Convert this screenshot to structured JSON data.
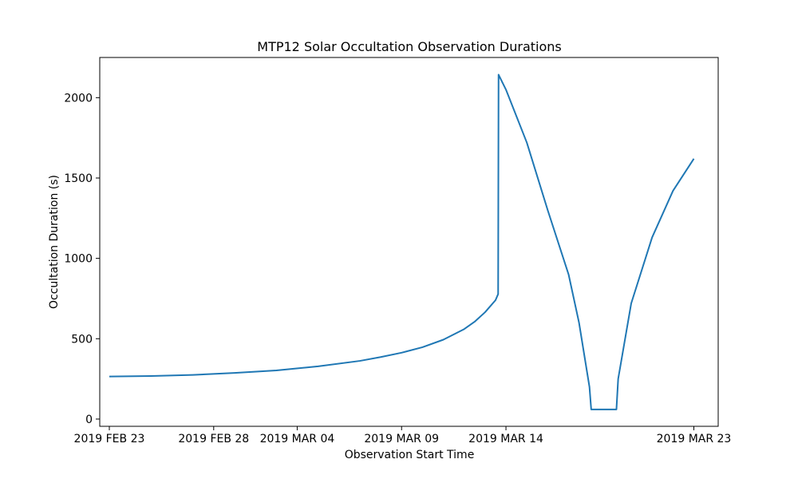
{
  "chart_data": {
    "type": "line",
    "title": "MTP12 Solar Occultation Observation Durations",
    "xlabel": "Observation Start Time",
    "ylabel": "Occultation Duration (s)",
    "x_ticks": [
      {
        "date": "2019-02-23",
        "label": "2019 FEB 23"
      },
      {
        "date": "2019-02-28",
        "label": "2019 FEB 28"
      },
      {
        "date": "2019-03-04",
        "label": "2019 MAR 04"
      },
      {
        "date": "2019-03-09",
        "label": "2019 MAR 09"
      },
      {
        "date": "2019-03-14",
        "label": "2019 MAR 14"
      },
      {
        "date": "2019-03-23",
        "label": "2019 MAR 23"
      }
    ],
    "y_ticks": [
      0,
      500,
      1000,
      1500,
      2000
    ],
    "xlim": [
      "2019-02-22 13:00",
      "2019-03-24 04:00"
    ],
    "ylim": [
      -45,
      2250
    ],
    "grid": false,
    "series": [
      {
        "color": "#1f77b4",
        "points": [
          {
            "x": "2019-02-23 00:00",
            "y": 265
          },
          {
            "x": "2019-02-25 00:00",
            "y": 268
          },
          {
            "x": "2019-02-27 00:00",
            "y": 275
          },
          {
            "x": "2019-03-01 00:00",
            "y": 287
          },
          {
            "x": "2019-03-03 00:00",
            "y": 303
          },
          {
            "x": "2019-03-05 00:00",
            "y": 328
          },
          {
            "x": "2019-03-07 00:00",
            "y": 362
          },
          {
            "x": "2019-03-08 00:00",
            "y": 386
          },
          {
            "x": "2019-03-09 00:00",
            "y": 413
          },
          {
            "x": "2019-03-10 00:00",
            "y": 447
          },
          {
            "x": "2019-03-11 00:00",
            "y": 494
          },
          {
            "x": "2019-03-12 00:00",
            "y": 560
          },
          {
            "x": "2019-03-12 12:00",
            "y": 606
          },
          {
            "x": "2019-03-13 00:00",
            "y": 665
          },
          {
            "x": "2019-03-13 12:00",
            "y": 740
          },
          {
            "x": "2019-03-13 15:00",
            "y": 778
          },
          {
            "x": "2019-03-13 15:30",
            "y": 2143
          },
          {
            "x": "2019-03-14 00:00",
            "y": 2050
          },
          {
            "x": "2019-03-15 00:00",
            "y": 1720
          },
          {
            "x": "2019-03-16 00:00",
            "y": 1300
          },
          {
            "x": "2019-03-17 00:00",
            "y": 900
          },
          {
            "x": "2019-03-17 12:00",
            "y": 600
          },
          {
            "x": "2019-03-18 00:00",
            "y": 200
          },
          {
            "x": "2019-03-18 02:00",
            "y": 60
          },
          {
            "x": "2019-03-19 07:00",
            "y": 60
          },
          {
            "x": "2019-03-19 09:00",
            "y": 250
          },
          {
            "x": "2019-03-20 00:00",
            "y": 720
          },
          {
            "x": "2019-03-21 00:00",
            "y": 1130
          },
          {
            "x": "2019-03-22 00:00",
            "y": 1420
          },
          {
            "x": "2019-03-23 00:00",
            "y": 1620
          }
        ]
      }
    ]
  }
}
